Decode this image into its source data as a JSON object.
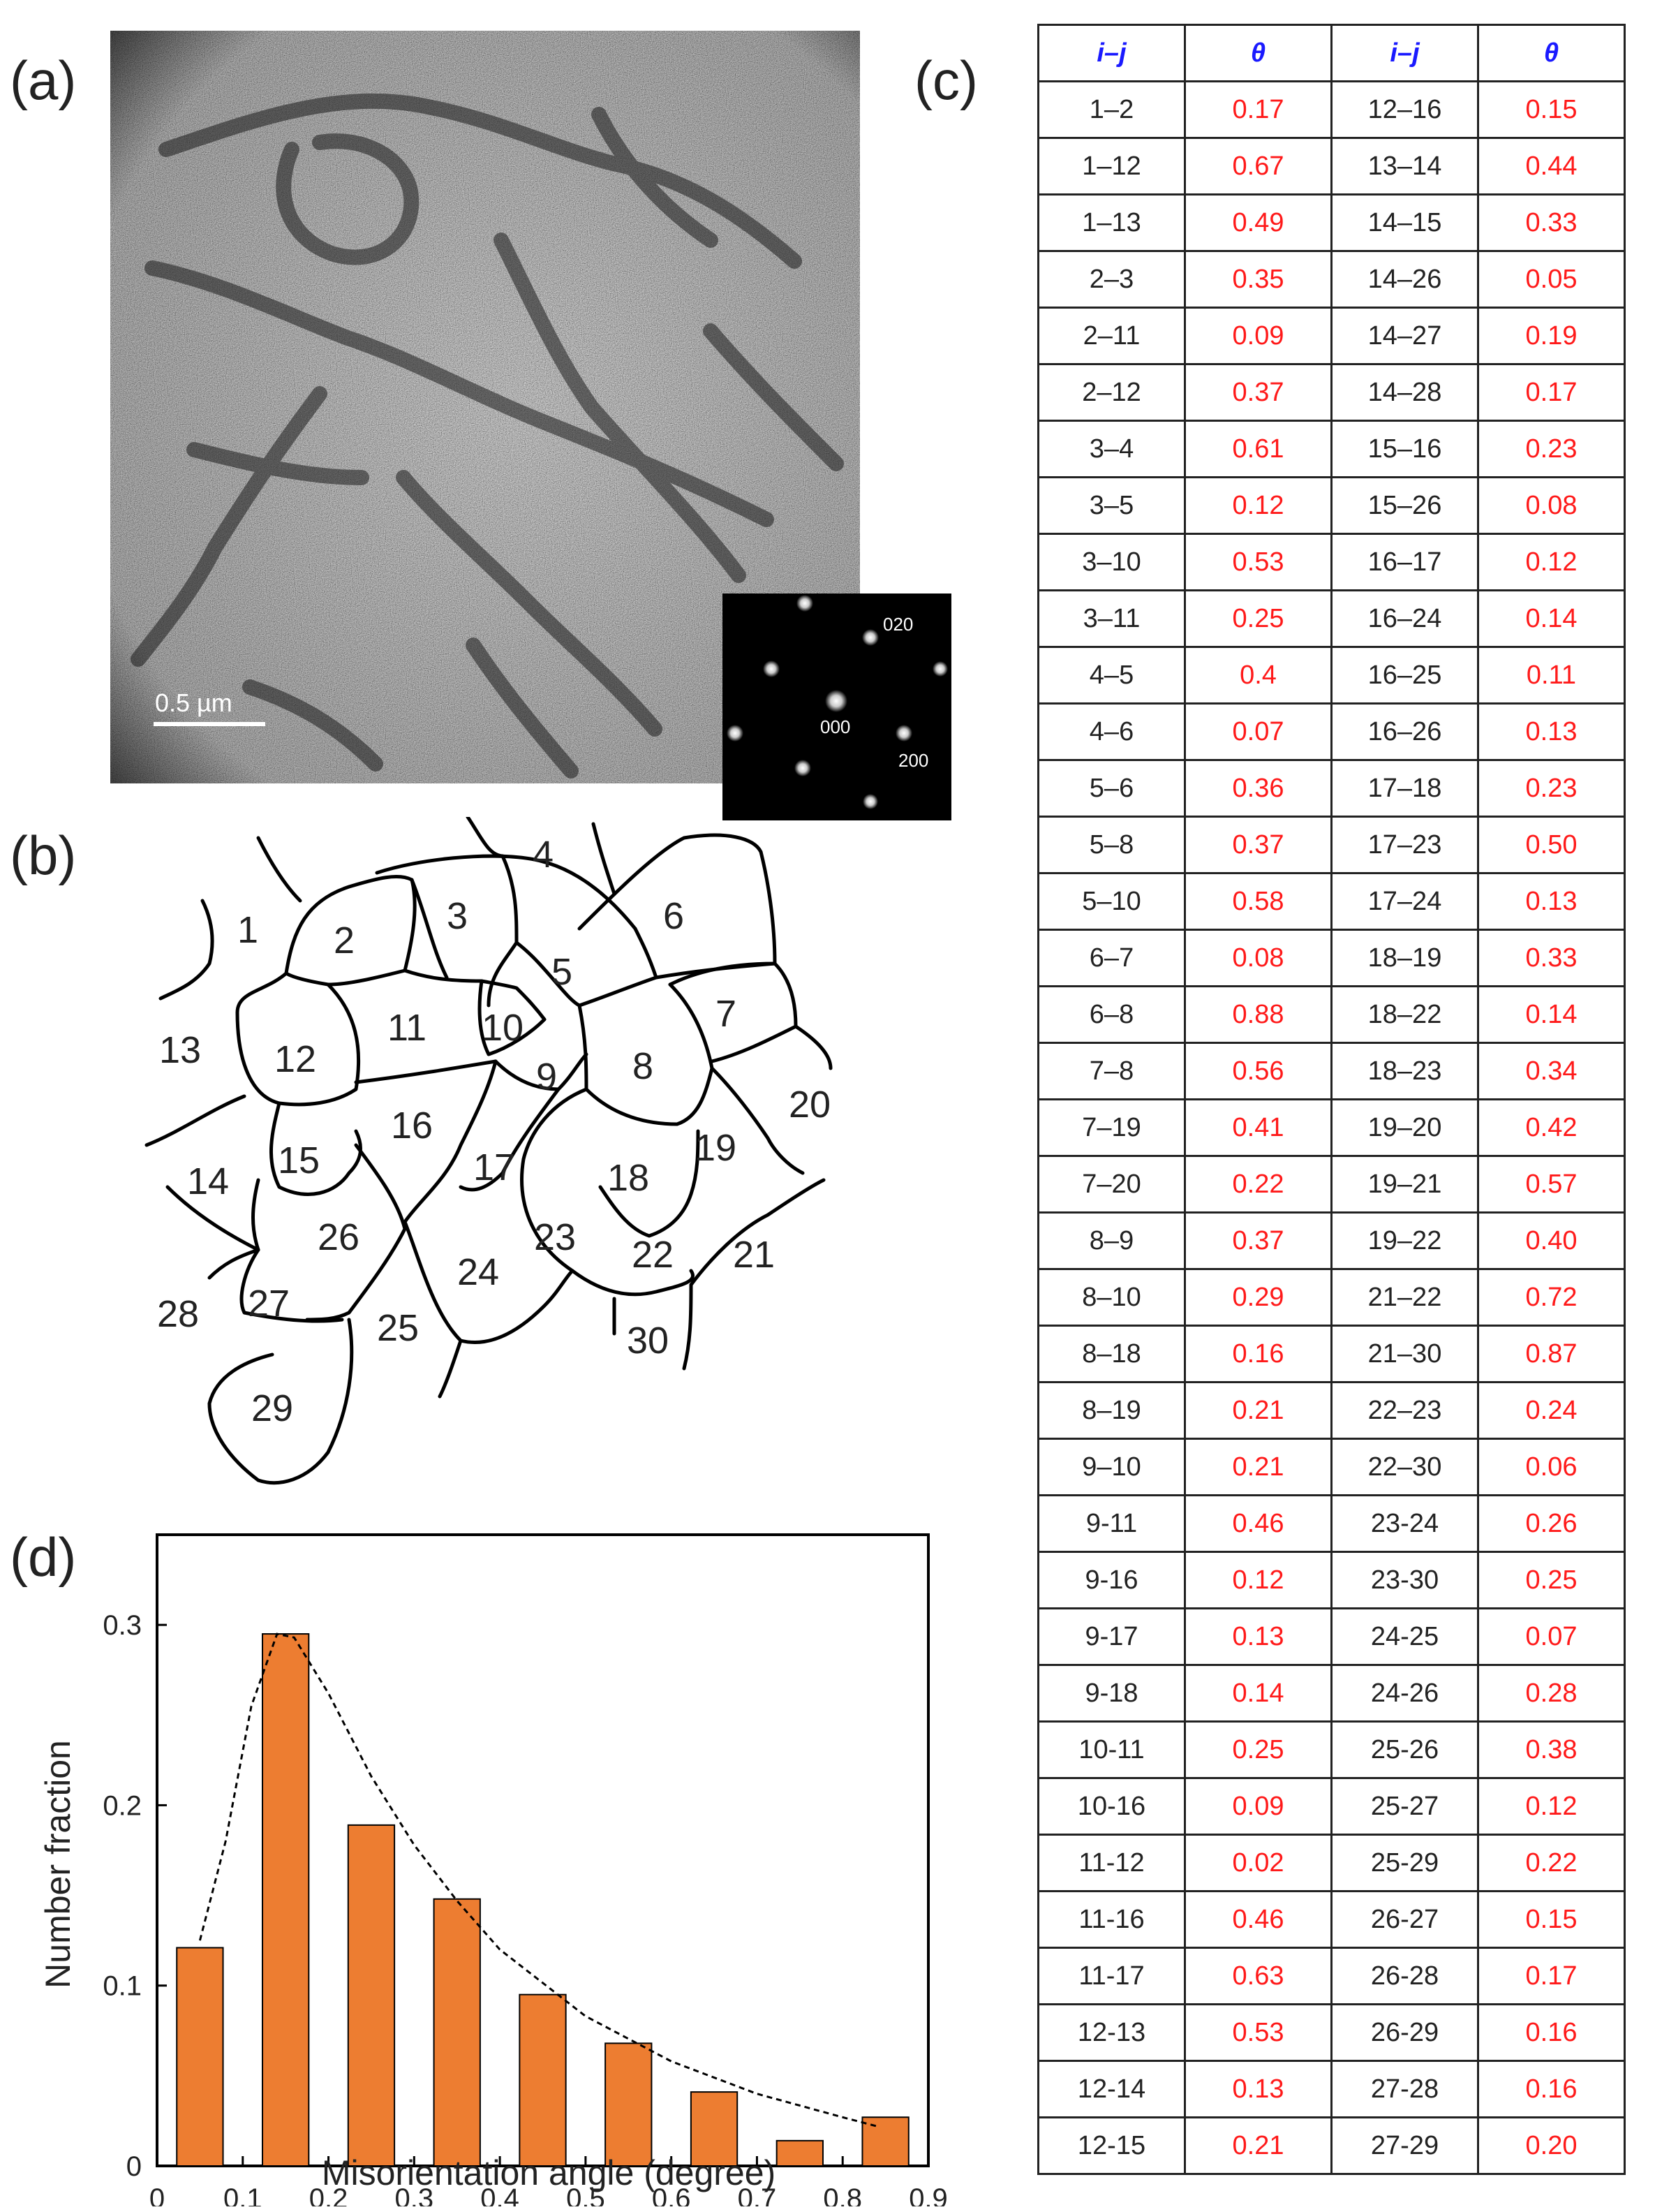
{
  "labels": {
    "a": "(a)",
    "b": "(b)",
    "c": "(c)",
    "d": "(d)"
  },
  "micrograph": {
    "scale_bar": "0.5 µm"
  },
  "diffraction": {
    "spot_020": "020",
    "spot_000": "000",
    "spot_200": "200"
  },
  "grain_numbers": [
    "1",
    "2",
    "3",
    "4",
    "5",
    "6",
    "7",
    "8",
    "9",
    "10",
    "11",
    "12",
    "13",
    "14",
    "15",
    "16",
    "17",
    "18",
    "19",
    "20",
    "21",
    "22",
    "23",
    "24",
    "25",
    "26",
    "27",
    "28",
    "29",
    "30"
  ],
  "table": {
    "headers": [
      "i–j",
      "θ",
      "i–j",
      "θ"
    ],
    "rows": [
      [
        "1–2",
        "0.17",
        "12–16",
        "0.15"
      ],
      [
        "1–12",
        "0.67",
        "13–14",
        "0.44"
      ],
      [
        "1–13",
        "0.49",
        "14–15",
        "0.33"
      ],
      [
        "2–3",
        "0.35",
        "14–26",
        "0.05"
      ],
      [
        "2–11",
        "0.09",
        "14–27",
        "0.19"
      ],
      [
        "2–12",
        "0.37",
        "14–28",
        "0.17"
      ],
      [
        "3–4",
        "0.61",
        "15–16",
        "0.23"
      ],
      [
        "3–5",
        "0.12",
        "15–26",
        "0.08"
      ],
      [
        "3–10",
        "0.53",
        "16–17",
        "0.12"
      ],
      [
        "3–11",
        "0.25",
        "16–24",
        "0.14"
      ],
      [
        "4–5",
        "0.4",
        "16–25",
        "0.11"
      ],
      [
        "4–6",
        "0.07",
        "16–26",
        "0.13"
      ],
      [
        "5–6",
        "0.36",
        "17–18",
        "0.23"
      ],
      [
        "5–8",
        "0.37",
        "17–23",
        "0.50"
      ],
      [
        "5–10",
        "0.58",
        "17–24",
        "0.13"
      ],
      [
        "6–7",
        "0.08",
        "18–19",
        "0.33"
      ],
      [
        "6–8",
        "0.88",
        "18–22",
        "0.14"
      ],
      [
        "7–8",
        "0.56",
        "18–23",
        "0.34"
      ],
      [
        "7–19",
        "0.41",
        "19–20",
        "0.42"
      ],
      [
        "7–20",
        "0.22",
        "19–21",
        "0.57"
      ],
      [
        "8–9",
        "0.37",
        "19–22",
        "0.40"
      ],
      [
        "8–10",
        "0.29",
        "21–22",
        "0.72"
      ],
      [
        "8–18",
        "0.16",
        "21–30",
        "0.87"
      ],
      [
        "8–19",
        "0.21",
        "22–23",
        "0.24"
      ],
      [
        "9–10",
        "0.21",
        "22–30",
        "0.06"
      ],
      [
        "9-11",
        "0.46",
        "23-24",
        "0.26"
      ],
      [
        "9-16",
        "0.12",
        "23-30",
        "0.25"
      ],
      [
        "9-17",
        "0.13",
        "24-25",
        "0.07"
      ],
      [
        "9-18",
        "0.14",
        "24-26",
        "0.28"
      ],
      [
        "10-11",
        "0.25",
        "25-26",
        "0.38"
      ],
      [
        "10-16",
        "0.09",
        "25-27",
        "0.12"
      ],
      [
        "11-12",
        "0.02",
        "25-29",
        "0.22"
      ],
      [
        "11-16",
        "0.46",
        "26-27",
        "0.15"
      ],
      [
        "11-17",
        "0.63",
        "26-28",
        "0.17"
      ],
      [
        "12-13",
        "0.53",
        "26-29",
        "0.16"
      ],
      [
        "12-14",
        "0.13",
        "27-28",
        "0.16"
      ],
      [
        "12-15",
        "0.21",
        "27-29",
        "0.20"
      ]
    ]
  },
  "chart_data": {
    "type": "bar",
    "x": [
      0.05,
      0.15,
      0.25,
      0.35,
      0.45,
      0.55,
      0.65,
      0.75,
      0.85
    ],
    "values": [
      0.121,
      0.295,
      0.189,
      0.148,
      0.095,
      0.068,
      0.041,
      0.014,
      0.027
    ],
    "fit_curve": {
      "x": [
        0.05,
        0.08,
        0.11,
        0.14,
        0.16,
        0.2,
        0.25,
        0.3,
        0.35,
        0.4,
        0.5,
        0.6,
        0.7,
        0.8,
        0.84
      ],
      "y": [
        0.125,
        0.18,
        0.255,
        0.295,
        0.293,
        0.262,
        0.216,
        0.178,
        0.147,
        0.12,
        0.083,
        0.058,
        0.04,
        0.027,
        0.022
      ]
    },
    "xlabel": "Misorientation angle (degree)",
    "ylabel": "Number fraction",
    "xlim": [
      0,
      0.9
    ],
    "ylim": [
      0,
      0.35
    ],
    "xticks": [
      "0",
      "0.1",
      "0.2",
      "0.3",
      "0.4",
      "0.5",
      "0.6",
      "0.7",
      "0.8",
      "0.9"
    ],
    "yticks": [
      "0",
      "0.1",
      "0.2",
      "0.3"
    ],
    "bar_color": "#ed7d31"
  }
}
